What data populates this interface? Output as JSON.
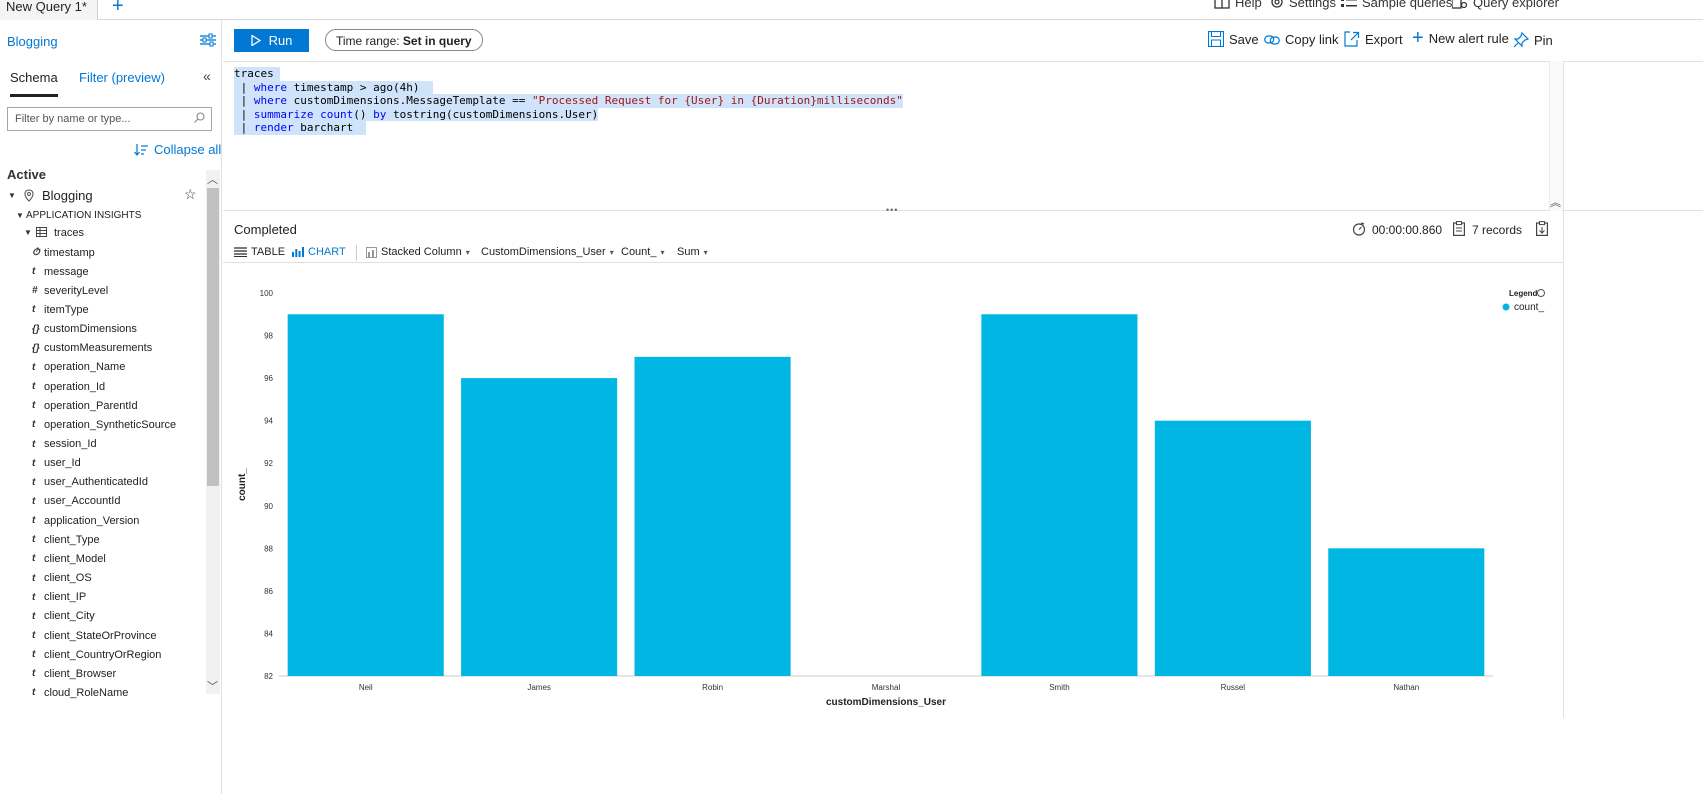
{
  "tabs": {
    "query_tab": "New Query 1*",
    "add": "+"
  },
  "top_links": {
    "help": "Help",
    "settings": "Settings",
    "sample_queries": "Sample queries",
    "query_explorer": "Query explorer"
  },
  "left_panel": {
    "workspace": "Blogging",
    "schema_tab": "Schema",
    "filter_tab": "Filter (preview)",
    "filter_placeholder": "Filter by name or type...",
    "collapse_all": "Collapse all",
    "active_label": "Active",
    "resource": "Blogging",
    "group": "APPLICATION INSIGHTS",
    "table": "traces",
    "fields": [
      {
        "type": "⏱",
        "name": "timestamp"
      },
      {
        "type": "t",
        "name": "message"
      },
      {
        "type": "#",
        "name": "severityLevel"
      },
      {
        "type": "t",
        "name": "itemType"
      },
      {
        "type": "{}",
        "name": "customDimensions"
      },
      {
        "type": "{}",
        "name": "customMeasurements"
      },
      {
        "type": "t",
        "name": "operation_Name"
      },
      {
        "type": "t",
        "name": "operation_Id"
      },
      {
        "type": "t",
        "name": "operation_ParentId"
      },
      {
        "type": "t",
        "name": "operation_SyntheticSource"
      },
      {
        "type": "t",
        "name": "session_Id"
      },
      {
        "type": "t",
        "name": "user_Id"
      },
      {
        "type": "t",
        "name": "user_AuthenticatedId"
      },
      {
        "type": "t",
        "name": "user_AccountId"
      },
      {
        "type": "t",
        "name": "application_Version"
      },
      {
        "type": "t",
        "name": "client_Type"
      },
      {
        "type": "t",
        "name": "client_Model"
      },
      {
        "type": "t",
        "name": "client_OS"
      },
      {
        "type": "t",
        "name": "client_IP"
      },
      {
        "type": "t",
        "name": "client_City"
      },
      {
        "type": "t",
        "name": "client_StateOrProvince"
      },
      {
        "type": "t",
        "name": "client_CountryOrRegion"
      },
      {
        "type": "t",
        "name": "client_Browser"
      },
      {
        "type": "t",
        "name": "cloud_RoleName"
      }
    ]
  },
  "toolbar": {
    "run": "Run",
    "time_range_prefix": "Time range: ",
    "time_range_value": "Set in query",
    "save": "Save",
    "copy_link": "Copy link",
    "export": "Export",
    "new_alert_rule": "New alert rule",
    "pin": "Pin"
  },
  "editor": {
    "lines": [
      {
        "parts": [
          {
            "c": "plain",
            "t": "traces "
          }
        ]
      },
      {
        "parts": [
          {
            "c": "pipe",
            "t": " | "
          },
          {
            "c": "kw",
            "t": "where"
          },
          {
            "c": "plain",
            "t": " timestamp > ago(4h)  "
          }
        ]
      },
      {
        "parts": [
          {
            "c": "pipe",
            "t": " | "
          },
          {
            "c": "kw",
            "t": "where"
          },
          {
            "c": "plain",
            "t": " customDimensions.MessageTemplate == "
          },
          {
            "c": "str",
            "t": "\"Processed Request for {User} in {Duration}milliseconds\""
          }
        ]
      },
      {
        "parts": [
          {
            "c": "pipe",
            "t": " | "
          },
          {
            "c": "kw",
            "t": "summarize"
          },
          {
            "c": "plain",
            "t": " "
          },
          {
            "c": "kw",
            "t": "count"
          },
          {
            "c": "plain",
            "t": "() "
          },
          {
            "c": "kw",
            "t": "by"
          },
          {
            "c": "plain",
            "t": " tostring(customDimensions.User)"
          }
        ]
      },
      {
        "parts": [
          {
            "c": "pipe",
            "t": " | "
          },
          {
            "c": "kw",
            "t": "render"
          },
          {
            "c": "plain",
            "t": " barchart  "
          }
        ]
      }
    ]
  },
  "results": {
    "status": "Completed",
    "elapsed": "00:00:00.860",
    "records": "7 records",
    "view_table": "TABLE",
    "view_chart": "CHART",
    "chart_type": "Stacked Column",
    "x_field": "CustomDimensions_User",
    "y_field": "Count_",
    "aggregation": "Sum"
  },
  "colors": {
    "accent": "#0078d4",
    "bar": "#00b7e3"
  },
  "chart_data": {
    "type": "bar",
    "categories": [
      "Neil",
      "James",
      "Robin",
      "Marshal",
      "Smith",
      "Russel",
      "Nathan"
    ],
    "values": [
      99,
      96,
      97,
      82,
      99,
      94,
      88
    ],
    "xlabel": "customDimensions_User",
    "ylabel": "count_",
    "ylim": [
      82,
      100
    ],
    "yticks": [
      82,
      84,
      86,
      88,
      90,
      92,
      94,
      96,
      98,
      100
    ],
    "legend_title": "Legend",
    "legend_entry": "count_",
    "legend_position": "top-right",
    "grid": false
  }
}
